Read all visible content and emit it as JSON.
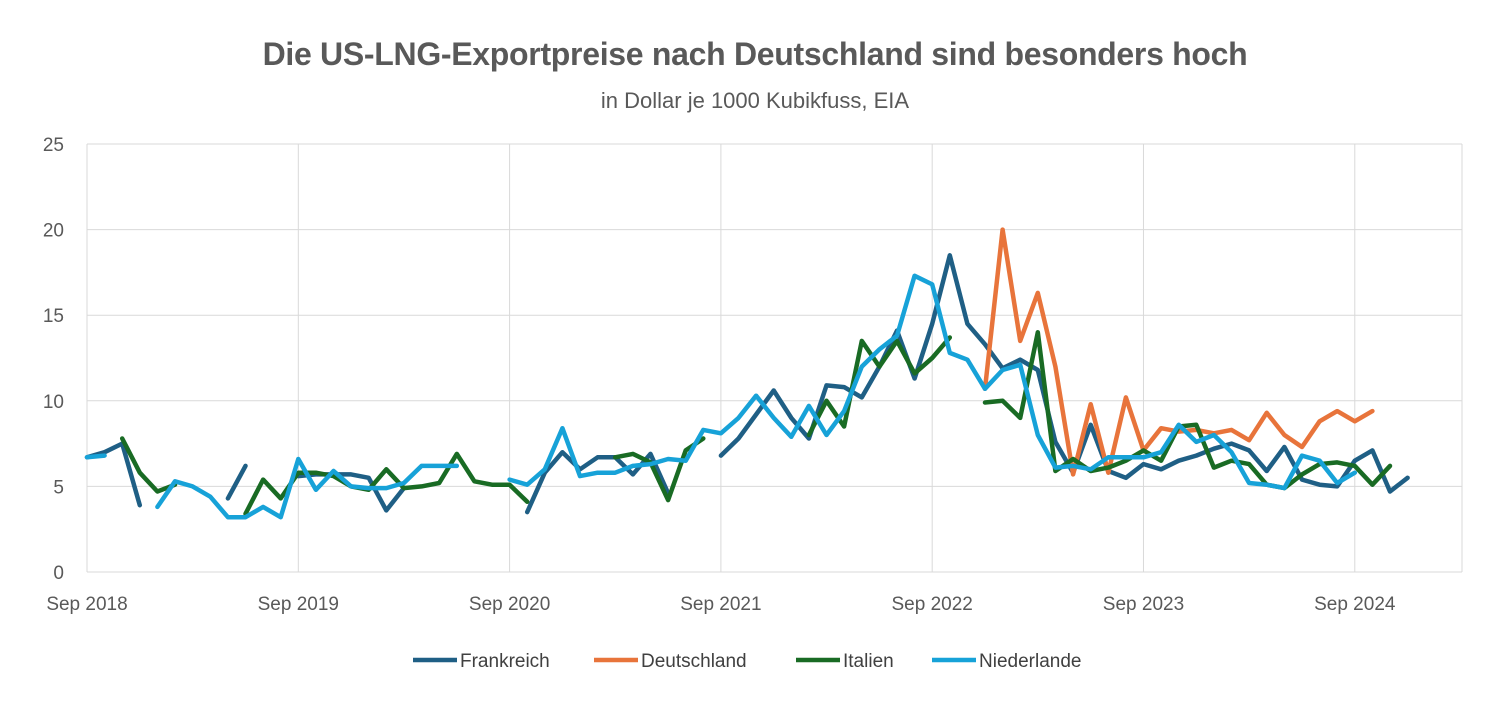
{
  "chart_data": {
    "type": "line",
    "title": "Die US-LNG-Exportpreise nach Deutschland sind besonders hoch",
    "subtitle": "in Dollar je 1000 Kubikfuss, EIA",
    "xlabel": "",
    "ylabel": "",
    "x_tick_labels": [
      "Sep 2018",
      "Sep 2019",
      "Sep 2020",
      "Sep 2021",
      "Sep 2022",
      "Sep 2023",
      "Sep 2024"
    ],
    "y_ticks": [
      0,
      5,
      10,
      15,
      20,
      25
    ],
    "ylim": [
      0,
      25
    ],
    "x_range": [
      "2018-09",
      "2024-11"
    ],
    "grid": true,
    "legend_position": "bottom",
    "series": [
      {
        "name": "Frankreich",
        "color": "#1f5f85",
        "points": [
          [
            "2018-09",
            6.7
          ],
          [
            "2018-10",
            7.0
          ],
          [
            "2018-11",
            7.5
          ],
          [
            "2018-12",
            3.9
          ],
          null,
          [
            "2019-05",
            4.3
          ],
          [
            "2019-06",
            6.2
          ],
          null,
          [
            "2019-09",
            5.6
          ],
          [
            "2019-10",
            5.7
          ],
          [
            "2019-11",
            5.7
          ],
          [
            "2019-12",
            5.7
          ],
          [
            "2020-01",
            5.5
          ],
          [
            "2020-02",
            3.6
          ],
          [
            "2020-03",
            4.9
          ],
          null,
          [
            "2020-10",
            3.5
          ],
          [
            "2020-11",
            5.8
          ],
          [
            "2020-12",
            7.0
          ],
          [
            "2021-01",
            6.0
          ],
          [
            "2021-02",
            6.7
          ],
          [
            "2021-03",
            6.7
          ],
          [
            "2021-04",
            5.7
          ],
          [
            "2021-05",
            6.9
          ],
          [
            "2021-06",
            4.6
          ],
          null,
          [
            "2021-09",
            6.8
          ],
          [
            "2021-10",
            7.8
          ],
          [
            "2021-11",
            9.2
          ],
          [
            "2021-12",
            10.6
          ],
          [
            "2022-01",
            9.0
          ],
          [
            "2022-02",
            7.8
          ],
          [
            "2022-03",
            10.9
          ],
          [
            "2022-04",
            10.8
          ],
          [
            "2022-05",
            10.2
          ],
          [
            "2022-06",
            12.0
          ],
          [
            "2022-07",
            14.1
          ],
          [
            "2022-08",
            11.3
          ],
          [
            "2022-09",
            14.5
          ],
          [
            "2022-10",
            18.5
          ],
          [
            "2022-11",
            14.5
          ],
          [
            "2022-12",
            13.3
          ],
          [
            "2023-01",
            11.9
          ],
          [
            "2023-02",
            12.4
          ],
          [
            "2023-03",
            11.8
          ],
          [
            "2023-04",
            7.6
          ],
          [
            "2023-05",
            5.8
          ],
          [
            "2023-06",
            8.6
          ],
          [
            "2023-07",
            5.9
          ],
          [
            "2023-08",
            5.5
          ],
          [
            "2023-09",
            6.3
          ],
          [
            "2023-10",
            6.0
          ],
          [
            "2023-11",
            6.5
          ],
          [
            "2023-12",
            6.8
          ],
          [
            "2024-01",
            7.2
          ],
          [
            "2024-02",
            7.5
          ],
          [
            "2024-03",
            7.1
          ],
          [
            "2024-04",
            5.9
          ],
          [
            "2024-05",
            7.3
          ],
          [
            "2024-06",
            5.4
          ],
          [
            "2024-07",
            5.1
          ],
          [
            "2024-08",
            5.0
          ],
          [
            "2024-09",
            6.5
          ],
          [
            "2024-10",
            7.1
          ],
          [
            "2024-11",
            4.7
          ],
          [
            "2024-12",
            5.5
          ]
        ]
      },
      {
        "name": "Deutschland",
        "color": "#e8743b",
        "points": [
          [
            "2022-12",
            10.7
          ],
          [
            "2023-01",
            20.0
          ],
          [
            "2023-02",
            13.5
          ],
          [
            "2023-03",
            16.3
          ],
          [
            "2023-04",
            12.0
          ],
          [
            "2023-05",
            5.7
          ],
          [
            "2023-06",
            9.8
          ],
          [
            "2023-07",
            5.8
          ],
          [
            "2023-08",
            10.2
          ],
          [
            "2023-09",
            7.1
          ],
          [
            "2023-10",
            8.4
          ],
          [
            "2023-11",
            8.2
          ],
          [
            "2023-12",
            8.3
          ],
          [
            "2024-01",
            8.1
          ],
          [
            "2024-02",
            8.3
          ],
          [
            "2024-03",
            7.7
          ],
          [
            "2024-04",
            9.3
          ],
          [
            "2024-05",
            8.0
          ],
          [
            "2024-06",
            7.3
          ],
          [
            "2024-07",
            8.8
          ],
          [
            "2024-08",
            9.4
          ],
          [
            "2024-09",
            8.8
          ],
          [
            "2024-10",
            9.4
          ]
        ]
      },
      {
        "name": "Italien",
        "color": "#196b24",
        "points": [
          [
            "2018-11",
            7.8
          ],
          [
            "2018-12",
            5.8
          ],
          [
            "2019-01",
            4.7
          ],
          [
            "2019-02",
            5.1
          ],
          null,
          [
            "2019-06",
            3.4
          ],
          [
            "2019-07",
            5.4
          ],
          [
            "2019-08",
            4.3
          ],
          [
            "2019-09",
            5.8
          ],
          [
            "2019-10",
            5.8
          ],
          [
            "2019-11",
            5.6
          ],
          [
            "2019-12",
            5.0
          ],
          [
            "2020-01",
            4.8
          ],
          [
            "2020-02",
            6.0
          ],
          [
            "2020-03",
            4.9
          ],
          [
            "2020-04",
            5.0
          ],
          [
            "2020-05",
            5.2
          ],
          [
            "2020-06",
            6.9
          ],
          [
            "2020-07",
            5.3
          ],
          [
            "2020-08",
            5.1
          ],
          [
            "2020-09",
            5.1
          ],
          [
            "2020-10",
            4.1
          ],
          null,
          [
            "2021-03",
            6.7
          ],
          [
            "2021-04",
            6.9
          ],
          [
            "2021-05",
            6.4
          ],
          [
            "2021-06",
            4.2
          ],
          [
            "2021-07",
            7.1
          ],
          [
            "2021-08",
            7.8
          ],
          null,
          [
            "2022-02",
            8.0
          ],
          [
            "2022-03",
            10.0
          ],
          [
            "2022-04",
            8.5
          ],
          [
            "2022-05",
            13.5
          ],
          [
            "2022-06",
            12.0
          ],
          [
            "2022-07",
            13.5
          ],
          [
            "2022-08",
            11.6
          ],
          [
            "2022-09",
            12.5
          ],
          [
            "2022-10",
            13.7
          ],
          null,
          [
            "2022-12",
            9.9
          ],
          [
            "2023-01",
            10.0
          ],
          [
            "2023-02",
            9.0
          ],
          [
            "2023-03",
            14.0
          ],
          [
            "2023-04",
            5.9
          ],
          [
            "2023-05",
            6.6
          ],
          [
            "2023-06",
            5.9
          ],
          [
            "2023-07",
            6.1
          ],
          [
            "2023-08",
            6.5
          ],
          [
            "2023-09",
            7.1
          ],
          [
            "2023-10",
            6.5
          ],
          [
            "2023-11",
            8.5
          ],
          [
            "2023-12",
            8.6
          ],
          [
            "2024-01",
            6.1
          ],
          [
            "2024-02",
            6.5
          ],
          [
            "2024-03",
            6.3
          ],
          [
            "2024-04",
            5.1
          ],
          [
            "2024-05",
            4.9
          ],
          [
            "2024-06",
            5.7
          ],
          [
            "2024-07",
            6.3
          ],
          [
            "2024-08",
            6.4
          ],
          [
            "2024-09",
            6.2
          ],
          [
            "2024-10",
            5.1
          ],
          [
            "2024-11",
            6.2
          ]
        ]
      },
      {
        "name": "Niederlande",
        "color": "#17a2d8",
        "points": [
          [
            "2018-09",
            6.7
          ],
          [
            "2018-10",
            6.8
          ],
          null,
          [
            "2019-01",
            3.8
          ],
          [
            "2019-02",
            5.3
          ],
          [
            "2019-03",
            5.0
          ],
          [
            "2019-04",
            4.4
          ],
          [
            "2019-05",
            3.2
          ],
          [
            "2019-06",
            3.2
          ],
          [
            "2019-07",
            3.8
          ],
          [
            "2019-08",
            3.2
          ],
          [
            "2019-09",
            6.6
          ],
          [
            "2019-10",
            4.8
          ],
          [
            "2019-11",
            5.9
          ],
          [
            "2019-12",
            5.0
          ],
          [
            "2020-01",
            4.9
          ],
          [
            "2020-02",
            4.9
          ],
          [
            "2020-03",
            5.2
          ],
          [
            "2020-04",
            6.2
          ],
          [
            "2020-05",
            6.2
          ],
          [
            "2020-06",
            6.2
          ],
          null,
          [
            "2020-09",
            5.4
          ],
          [
            "2020-10",
            5.1
          ],
          [
            "2020-11",
            6.0
          ],
          [
            "2020-12",
            8.4
          ],
          [
            "2021-01",
            5.6
          ],
          [
            "2021-02",
            5.8
          ],
          [
            "2021-03",
            5.8
          ],
          [
            "2021-04",
            6.2
          ],
          [
            "2021-05",
            6.3
          ],
          [
            "2021-06",
            6.6
          ],
          [
            "2021-07",
            6.5
          ],
          [
            "2021-08",
            8.3
          ],
          [
            "2021-09",
            8.1
          ],
          [
            "2021-10",
            9.0
          ],
          [
            "2021-11",
            10.3
          ],
          [
            "2021-12",
            9.0
          ],
          [
            "2022-01",
            7.9
          ],
          [
            "2022-02",
            9.7
          ],
          [
            "2022-03",
            8.0
          ],
          [
            "2022-04",
            9.4
          ],
          [
            "2022-05",
            12.0
          ],
          [
            "2022-06",
            13.0
          ],
          [
            "2022-07",
            13.8
          ],
          [
            "2022-08",
            17.3
          ],
          [
            "2022-09",
            16.8
          ],
          [
            "2022-10",
            12.8
          ],
          [
            "2022-11",
            12.4
          ],
          [
            "2022-12",
            10.7
          ],
          [
            "2023-01",
            11.8
          ],
          [
            "2023-02",
            12.1
          ],
          [
            "2023-03",
            8.0
          ],
          [
            "2023-04",
            6.1
          ],
          [
            "2023-05",
            6.2
          ],
          [
            "2023-06",
            6.0
          ],
          [
            "2023-07",
            6.7
          ],
          [
            "2023-08",
            6.7
          ],
          [
            "2023-09",
            6.7
          ],
          [
            "2023-10",
            7.0
          ],
          [
            "2023-11",
            8.6
          ],
          [
            "2023-12",
            7.6
          ],
          [
            "2024-01",
            8.0
          ],
          [
            "2024-02",
            7.0
          ],
          [
            "2024-03",
            5.2
          ],
          [
            "2024-04",
            5.1
          ],
          [
            "2024-05",
            4.9
          ],
          [
            "2024-06",
            6.8
          ],
          [
            "2024-07",
            6.5
          ],
          [
            "2024-08",
            5.2
          ],
          [
            "2024-09",
            5.8
          ]
        ]
      }
    ]
  }
}
